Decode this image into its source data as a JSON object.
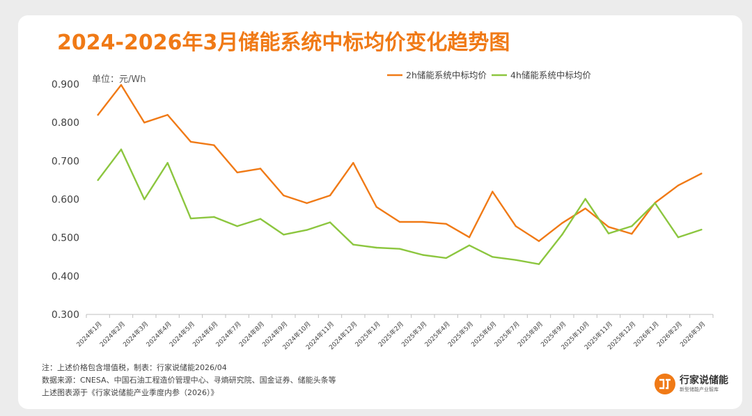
{
  "title": "2024-2026年3月储能系统中标均价变化趋势图",
  "colors": {
    "accent": "#f07a16",
    "series_2h": "#f07a16",
    "series_4h": "#8cc63f",
    "axis": "#bfbfbf",
    "text": "#404040"
  },
  "chart_data": {
    "type": "line",
    "unit_label": "单位：元/Wh",
    "x": [
      "2024年1月",
      "2024年2月",
      "2024年3月",
      "2024年4月",
      "2024年5月",
      "2024年6月",
      "2024年7月",
      "2024年8月",
      "2024年9月",
      "2024年10月",
      "2024年11月",
      "2024年12月",
      "2025年1月",
      "2025年2月",
      "2025年3月",
      "2025年4月",
      "2025年5月",
      "2025年6月",
      "2025年7月",
      "2025年8月",
      "2025年9月",
      "2025年10月",
      "2025年11月",
      "2025年12月",
      "2026年1月",
      "2026年2月",
      "2026年3月"
    ],
    "series": [
      {
        "name": "2h储能系统中标均价",
        "values": [
          0.82,
          0.898,
          0.8,
          0.82,
          0.75,
          0.741,
          0.67,
          0.68,
          0.61,
          0.59,
          0.61,
          0.695,
          0.58,
          0.541,
          0.541,
          0.536,
          0.501,
          0.62,
          0.53,
          0.491,
          0.538,
          0.576,
          0.528,
          0.51,
          0.591,
          0.636,
          0.667
        ]
      },
      {
        "name": "4h储能系统中标均价",
        "values": [
          0.65,
          0.73,
          0.6,
          0.695,
          0.55,
          0.554,
          0.53,
          0.549,
          0.508,
          0.52,
          0.54,
          0.482,
          0.474,
          0.471,
          0.455,
          0.447,
          0.48,
          0.45,
          0.442,
          0.431,
          0.508,
          0.601,
          0.511,
          0.53,
          0.59,
          0.501,
          0.521
        ]
      }
    ],
    "ylim": [
      0.3,
      0.9
    ],
    "yticks": [
      "0.300",
      "0.400",
      "0.500",
      "0.600",
      "0.700",
      "0.800",
      "0.900"
    ],
    "legend": "top-right",
    "grid": false
  },
  "notes": [
    "注：上述价格包含增值税，制表：行家说储能2026/04",
    "数据来源：CNESA、中国石油工程造价管理中心、寻熵研究院、国金证券、储能头条等",
    "上述图表源于《行家说储能产业季度内参（2026）》"
  ],
  "logo": {
    "name": "行家说储能",
    "tagline": "新型储能产业智库",
    "icon": "logo-mark-icon"
  }
}
